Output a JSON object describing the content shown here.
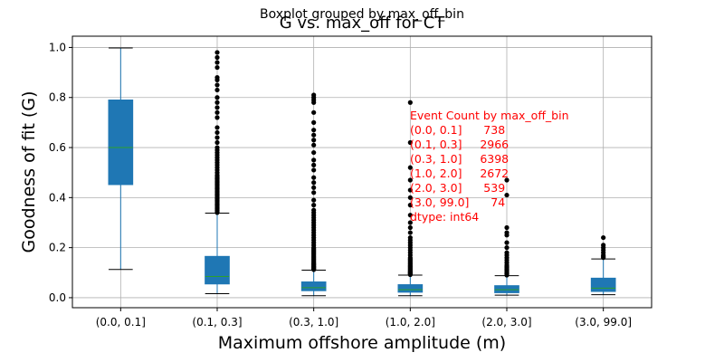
{
  "suptitle": "Boxplot grouped by max_off_bin",
  "chart_data": {
    "type": "boxplot",
    "title": "G vs. max_off for CT",
    "xlabel": "Maximum offshore amplitude (m)",
    "ylabel": "Goodness of fit (G)",
    "ylim": [
      -0.04,
      1.045
    ],
    "yticks": [
      "0.0",
      "0.2",
      "0.4",
      "0.6",
      "0.8",
      "1.0"
    ],
    "grid": true,
    "categories": [
      "(0.0, 0.1]",
      "(0.1, 0.3]",
      "(0.3, 1.0]",
      "(1.0, 2.0]",
      "(2.0, 3.0]",
      "(3.0, 99.0]"
    ],
    "box_color": "#1f77b4",
    "median_color": "#2ca02c",
    "outlier_color": "#000000",
    "annotation_color": "#ff0000",
    "boxes": [
      {
        "whislo": 0.113,
        "q1": 0.452,
        "med": 0.6,
        "q3": 0.79,
        "whishi": 0.998,
        "outliers": []
      },
      {
        "whislo": 0.016,
        "q1": 0.055,
        "med": 0.085,
        "q3": 0.165,
        "whishi": 0.338,
        "outliers": [
          0.34,
          0.345,
          0.35,
          0.355,
          0.36,
          0.365,
          0.37,
          0.375,
          0.38,
          0.385,
          0.39,
          0.395,
          0.4,
          0.405,
          0.41,
          0.415,
          0.42,
          0.425,
          0.43,
          0.435,
          0.44,
          0.445,
          0.45,
          0.455,
          0.46,
          0.465,
          0.47,
          0.475,
          0.48,
          0.485,
          0.49,
          0.5,
          0.51,
          0.52,
          0.53,
          0.54,
          0.55,
          0.56,
          0.57,
          0.58,
          0.59,
          0.6,
          0.62,
          0.64,
          0.66,
          0.68,
          0.72,
          0.74,
          0.76,
          0.78,
          0.8,
          0.83,
          0.85,
          0.87,
          0.88,
          0.92,
          0.94,
          0.96,
          0.98
        ]
      },
      {
        "whislo": 0.008,
        "q1": 0.028,
        "med": 0.04,
        "q3": 0.063,
        "whishi": 0.11,
        "outliers": [
          0.112,
          0.115,
          0.118,
          0.12,
          0.123,
          0.126,
          0.13,
          0.133,
          0.136,
          0.14,
          0.145,
          0.15,
          0.155,
          0.16,
          0.165,
          0.17,
          0.175,
          0.18,
          0.185,
          0.19,
          0.195,
          0.2,
          0.21,
          0.22,
          0.23,
          0.24,
          0.25,
          0.26,
          0.27,
          0.28,
          0.29,
          0.3,
          0.31,
          0.32,
          0.33,
          0.34,
          0.35,
          0.37,
          0.39,
          0.42,
          0.44,
          0.46,
          0.48,
          0.51,
          0.53,
          0.55,
          0.58,
          0.61,
          0.63,
          0.65,
          0.67,
          0.7,
          0.74,
          0.78,
          0.79,
          0.8,
          0.81
        ]
      },
      {
        "whislo": 0.008,
        "q1": 0.022,
        "med": 0.032,
        "q3": 0.052,
        "whishi": 0.09,
        "outliers": [
          0.092,
          0.095,
          0.098,
          0.1,
          0.103,
          0.106,
          0.11,
          0.114,
          0.118,
          0.122,
          0.126,
          0.13,
          0.135,
          0.14,
          0.145,
          0.15,
          0.155,
          0.16,
          0.17,
          0.18,
          0.19,
          0.2,
          0.21,
          0.22,
          0.23,
          0.24,
          0.26,
          0.28,
          0.3,
          0.33,
          0.37,
          0.4,
          0.43,
          0.47,
          0.52,
          0.62,
          0.78
        ]
      },
      {
        "whislo": 0.01,
        "q1": 0.02,
        "med": 0.032,
        "q3": 0.048,
        "whishi": 0.088,
        "outliers": [
          0.09,
          0.095,
          0.1,
          0.105,
          0.11,
          0.115,
          0.12,
          0.125,
          0.13,
          0.14,
          0.15,
          0.16,
          0.17,
          0.18,
          0.2,
          0.22,
          0.25,
          0.26,
          0.28,
          0.41,
          0.47
        ]
      },
      {
        "whislo": 0.012,
        "q1": 0.025,
        "med": 0.038,
        "q3": 0.078,
        "whishi": 0.155,
        "outliers": [
          0.16,
          0.165,
          0.17,
          0.18,
          0.19,
          0.2,
          0.21,
          0.24
        ]
      }
    ],
    "annotation_lines": [
      "Event Count by max_off_bin",
      "(0.0, 0.1]      738",
      "(0.1, 0.3]     2966",
      "(0.3, 1.0]     6398",
      "(1.0, 2.0]     2672",
      "(2.0, 3.0]      539",
      "(3.0, 99.0]      74",
      "dtype: int64"
    ]
  }
}
